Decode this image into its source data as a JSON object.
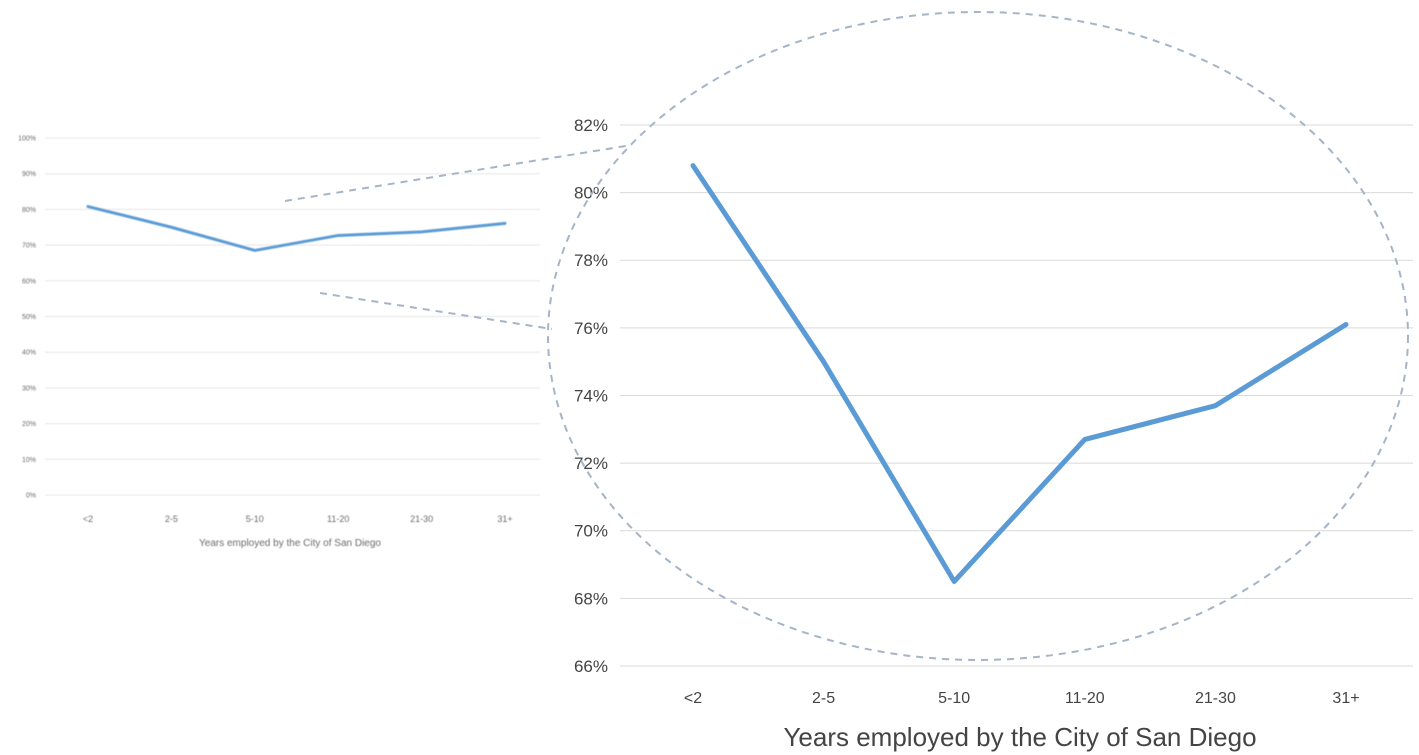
{
  "chart_data": [
    {
      "type": "line",
      "view": "overview",
      "categories": [
        "<2",
        "2-5",
        "5-10",
        "11-20",
        "21-30",
        "31+"
      ],
      "values": [
        80.8,
        75.0,
        68.5,
        72.7,
        73.7,
        76.1
      ],
      "xlabel": "Years employed by the City of San Diego",
      "ylabel": "",
      "ylim": [
        0,
        100
      ],
      "y_ticks": [
        "0%",
        "10%",
        "20%",
        "30%",
        "40%",
        "50%",
        "60%",
        "70%",
        "80%",
        "90%",
        "100%"
      ],
      "grid": true,
      "legend": "none",
      "line_color": "#5b9bd5"
    },
    {
      "type": "line",
      "view": "zoomed",
      "categories": [
        "<2",
        "2-5",
        "5-10",
        "11-20",
        "21-30",
        "31+"
      ],
      "values": [
        80.8,
        75.0,
        68.5,
        72.7,
        73.7,
        76.1
      ],
      "xlabel": "Years employed by the City of San Diego",
      "ylabel": "",
      "ylim": [
        66,
        82
      ],
      "y_ticks": [
        "66%",
        "68%",
        "70%",
        "72%",
        "74%",
        "76%",
        "78%",
        "80%",
        "82%"
      ],
      "grid": true,
      "legend": "none",
      "line_color": "#5b9bd5",
      "annotation": "dashed ellipse magnifier"
    }
  ],
  "colors": {
    "line": "#5b9bd5",
    "grid": "#d9d9d9",
    "magnifier": "#a6b4c8"
  }
}
